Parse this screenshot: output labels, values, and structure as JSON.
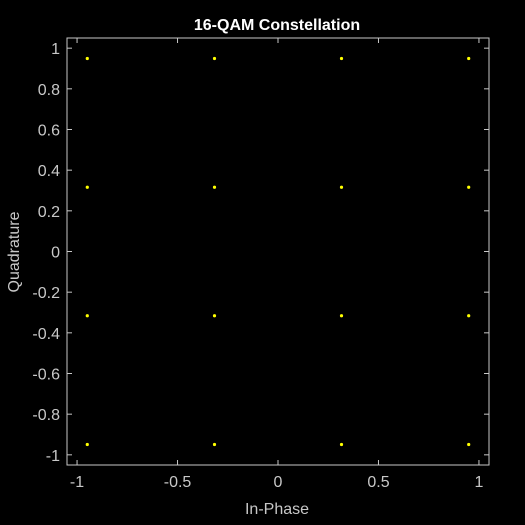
{
  "chart_data": {
    "type": "scatter",
    "title": "16-QAM Constellation",
    "xlabel": "In-Phase",
    "ylabel": "Quadrature",
    "xlim": [
      -1,
      1
    ],
    "ylim": [
      -1,
      1
    ],
    "grid": false,
    "marker_color": "#ffff00",
    "background": "#000000",
    "axis_color": "#c8c8c8",
    "x_ticks": [
      -1,
      -0.5,
      0,
      0.5,
      1
    ],
    "x_tick_labels": [
      "-1",
      "-0.5",
      "0",
      "0.5",
      "1"
    ],
    "y_ticks": [
      1,
      0.8,
      0.6,
      0.4,
      0.2,
      0,
      -0.2,
      -0.4,
      -0.6,
      -0.8,
      -1
    ],
    "y_tick_labels": [
      "1",
      "0.8",
      "0.6",
      "0.4",
      "0.2",
      "0",
      "-0.2",
      "-0.4",
      "-0.6",
      "-0.8",
      "-1"
    ],
    "points": [
      {
        "x": -0.949,
        "y": 0.949
      },
      {
        "x": -0.316,
        "y": 0.949
      },
      {
        "x": 0.316,
        "y": 0.949
      },
      {
        "x": 0.949,
        "y": 0.949
      },
      {
        "x": -0.949,
        "y": 0.316
      },
      {
        "x": -0.316,
        "y": 0.316
      },
      {
        "x": 0.316,
        "y": 0.316
      },
      {
        "x": 0.949,
        "y": 0.316
      },
      {
        "x": -0.949,
        "y": -0.316
      },
      {
        "x": -0.316,
        "y": -0.316
      },
      {
        "x": 0.316,
        "y": -0.316
      },
      {
        "x": 0.949,
        "y": -0.316
      },
      {
        "x": -0.949,
        "y": -0.949
      },
      {
        "x": -0.316,
        "y": -0.949
      },
      {
        "x": 0.316,
        "y": -0.949
      },
      {
        "x": 0.949,
        "y": -0.949
      }
    ]
  }
}
